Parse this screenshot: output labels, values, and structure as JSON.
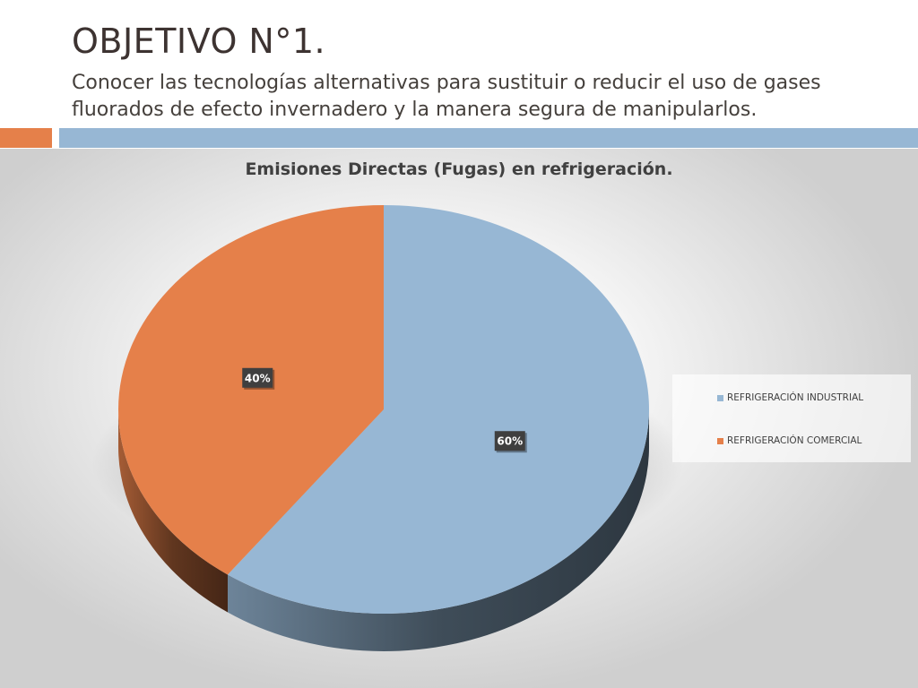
{
  "slide": {
    "title": "OBJETIVO N°1.",
    "subtitle": "Conocer las tecnologías alternativas para sustituir o reducir el uso de gases fluorados de efecto invernadero y la manera segura de manipularlos."
  },
  "chart_data": {
    "type": "pie",
    "title": "Emisiones Directas (Fugas) en refrigeración.",
    "categories": [
      "REFRIGERACIÓN INDUSTRIAL",
      "REFRIGERACIÓN COMERCIAL"
    ],
    "values": [
      60,
      40
    ],
    "labels": [
      "60%",
      "40%"
    ],
    "colors": [
      "#97b7d4",
      "#e5804a"
    ],
    "style": "3d",
    "legend": "right"
  }
}
